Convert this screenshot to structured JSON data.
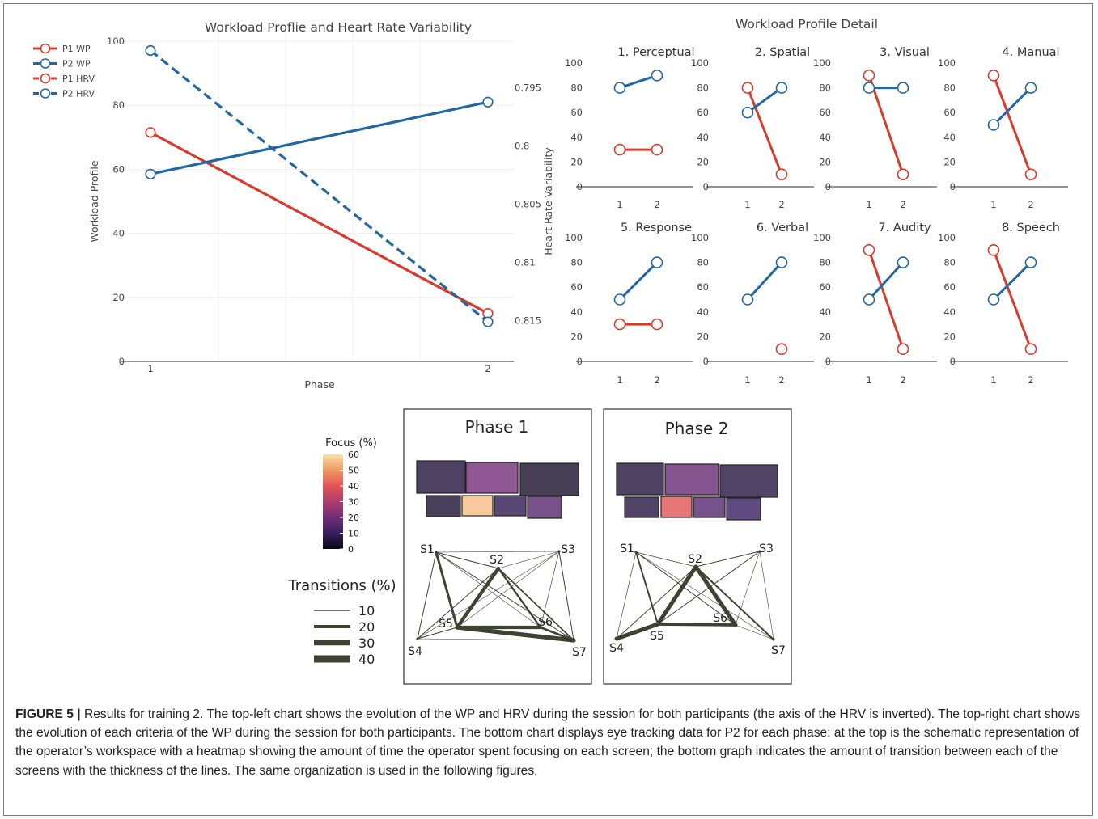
{
  "chart_data": [
    {
      "type": "line",
      "title": "Workload Proflie and Heart Rate Variability",
      "xlabel": "Phase",
      "ylabel": "Workload Profile",
      "y2label": "Heart Rate Variability",
      "x": [
        1,
        2
      ],
      "ylim": [
        0,
        100
      ],
      "yticks": [
        0,
        20,
        40,
        60,
        80,
        100
      ],
      "y2lim": [
        0.8185,
        0.791
      ],
      "y2ticks": [
        "0.795",
        "0.8",
        "0.805",
        "0.81",
        "0.815"
      ],
      "y2_inverted": true,
      "legend_position": "top-left",
      "series": [
        {
          "name": "P1 WP",
          "axis": "left",
          "values": [
            71.5,
            15
          ],
          "color": "#d93a2b",
          "dash": false
        },
        {
          "name": "P2 WP",
          "axis": "left",
          "values": [
            58.5,
            81
          ],
          "color": "#2166a5",
          "dash": false
        },
        {
          "name": "P1 HRV",
          "axis": "right",
          "values": [
            null,
            null
          ],
          "color": "#d93a2b",
          "dash": true
        },
        {
          "name": "P2 HRV",
          "axis": "right",
          "values": [
            0.7918,
            0.8151
          ],
          "color": "#2166a5",
          "dash": true
        }
      ]
    },
    {
      "type": "line",
      "title": "Workload Profile Detail",
      "x": [
        1,
        2
      ],
      "ylim": [
        0,
        100
      ],
      "yticks": [
        0,
        20,
        40,
        60,
        80,
        100
      ],
      "panels": [
        {
          "title": "1. Perceptual",
          "p1": [
            30,
            30
          ],
          "p2": [
            80,
            90
          ]
        },
        {
          "title": "2. Spatial",
          "p1": [
            80,
            10
          ],
          "p2": [
            60,
            80
          ]
        },
        {
          "title": "3. Visual",
          "p1": [
            90,
            10
          ],
          "p2": [
            80,
            80
          ]
        },
        {
          "title": "4. Manual",
          "p1": [
            90,
            10
          ],
          "p2": [
            50,
            80
          ]
        },
        {
          "title": "5. Response",
          "p1": [
            30,
            30
          ],
          "p2": [
            50,
            80
          ]
        },
        {
          "title": "6. Verbal",
          "p1": [
            null,
            10
          ],
          "p2": [
            50,
            80
          ]
        },
        {
          "title": "7. Audity",
          "p1": [
            90,
            10
          ],
          "p2": [
            50,
            80
          ]
        },
        {
          "title": "8. Speech",
          "p1": [
            90,
            10
          ],
          "p2": [
            50,
            80
          ]
        }
      ]
    }
  ],
  "eye_tracking": {
    "colorbar_title": "Focus (%)",
    "colorbar_ticks": [
      "60",
      "50",
      "40",
      "30",
      "20",
      "10",
      "0"
    ],
    "transitions_title": "Transitions (%)",
    "transitions_legend": [
      "10",
      "20",
      "30",
      "40"
    ],
    "screen_labels": [
      "S1",
      "S2",
      "S3",
      "S4",
      "S5",
      "S6",
      "S7"
    ],
    "phases": [
      {
        "title": "Phase 1",
        "focus": {
          "S1": 5,
          "S2": 20,
          "S3": 3,
          "S4": 4,
          "S5": 55,
          "S6": 8,
          "S7": 15
        },
        "transitions": [
          [
            "S1",
            "S2",
            6
          ],
          [
            "S1",
            "S3",
            2
          ],
          [
            "S1",
            "S4",
            6
          ],
          [
            "S1",
            "S5",
            18
          ],
          [
            "S1",
            "S6",
            3
          ],
          [
            "S1",
            "S7",
            6
          ],
          [
            "S2",
            "S3",
            3
          ],
          [
            "S2",
            "S4",
            6
          ],
          [
            "S2",
            "S5",
            26
          ],
          [
            "S2",
            "S6",
            14
          ],
          [
            "S2",
            "S7",
            10
          ],
          [
            "S3",
            "S4",
            2
          ],
          [
            "S3",
            "S5",
            3
          ],
          [
            "S3",
            "S6",
            4
          ],
          [
            "S3",
            "S7",
            6
          ],
          [
            "S4",
            "S5",
            6
          ],
          [
            "S4",
            "S7",
            2
          ],
          [
            "S5",
            "S6",
            26
          ],
          [
            "S5",
            "S7",
            32
          ],
          [
            "S6",
            "S7",
            16
          ]
        ]
      },
      {
        "title": "Phase 2",
        "focus": {
          "S1": 5,
          "S2": 18,
          "S3": 6,
          "S4": 6,
          "S5": 40,
          "S6": 15,
          "S7": 10
        },
        "transitions": [
          [
            "S1",
            "S2",
            4
          ],
          [
            "S1",
            "S4",
            4
          ],
          [
            "S1",
            "S5",
            12
          ],
          [
            "S1",
            "S6",
            6
          ],
          [
            "S1",
            "S7",
            3
          ],
          [
            "S2",
            "S3",
            6
          ],
          [
            "S2",
            "S4",
            6
          ],
          [
            "S2",
            "S5",
            30
          ],
          [
            "S2",
            "S6",
            30
          ],
          [
            "S2",
            "S7",
            12
          ],
          [
            "S3",
            "S5",
            6
          ],
          [
            "S3",
            "S6",
            3
          ],
          [
            "S3",
            "S7",
            3
          ],
          [
            "S4",
            "S5",
            30
          ],
          [
            "S5",
            "S6",
            22
          ],
          [
            "S6",
            "S7",
            3
          ]
        ]
      }
    ]
  },
  "caption": {
    "label": "FIGURE 5 |",
    "text": " Results for training 2. The top-left chart shows the evolution of the WP and HRV during the session for both participants (the axis of the HRV is inverted). The top-right chart shows the evolution of each criteria of the WP during the session for both participants. The bottom chart displays eye tracking data for P2 for each phase: at the top is the schematic representation of the operator’s workspace with a heatmap showing the amount of time the operator spent focusing on each screen; the bottom graph indicates the amount of transition between each of the screens with the thickness of the lines. The same organization is used in the following figures."
  },
  "colors": {
    "p1": "#d93a2b",
    "p2": "#2166a5",
    "edge": "#3c4330",
    "axis": "#444444"
  }
}
